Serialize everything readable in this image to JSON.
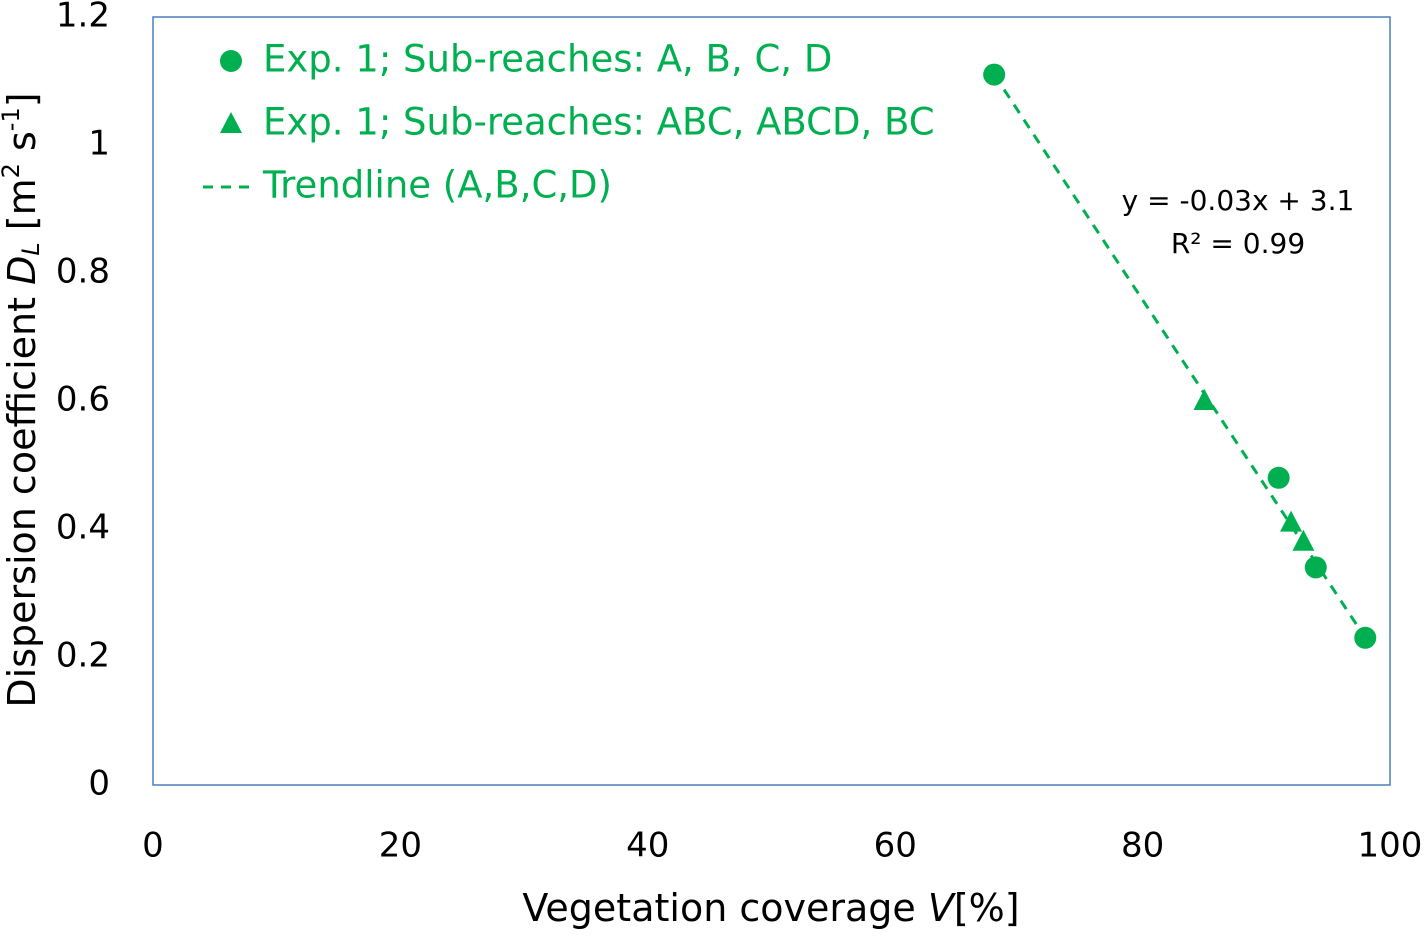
{
  "chart_data": {
    "type": "scatter",
    "xlabel": [
      "Vegetation coverage ",
      "V",
      "[%]"
    ],
    "ylabel": [
      "Dispersion coefficient ",
      "D",
      "L",
      " [m",
      "2",
      " s",
      "-1",
      "]"
    ],
    "xlim": [
      0,
      100
    ],
    "xticks": [
      0,
      20,
      40,
      60,
      80,
      100
    ],
    "ylim": [
      0,
      1.2
    ],
    "yticks": [
      0,
      0.2,
      0.4,
      0.6,
      0.8,
      1,
      1.2
    ],
    "legend": "upper left",
    "series": [
      {
        "name": "Exp. 1; Sub-reaches: A, B, C, D",
        "color": "#00b050",
        "marker": "circle",
        "x": [
          68,
          91,
          94,
          98
        ],
        "values": [
          1.11,
          0.48,
          0.34,
          0.23
        ]
      },
      {
        "name": "Exp. 1; Sub-reaches: ABC, ABCD, BC",
        "color": "#00b050",
        "marker": "triangle",
        "x": [
          85,
          92,
          93
        ],
        "values": [
          0.6,
          0.41,
          0.38
        ]
      },
      {
        "name": "Trendline (A,B,C,D)",
        "color": "#00b050",
        "line": "dashed",
        "x": [
          68,
          98
        ],
        "values": [
          1.11,
          0.23
        ]
      }
    ],
    "annotations": [
      "y = -0.03x + 3.1",
      "R² = 0.99"
    ]
  }
}
